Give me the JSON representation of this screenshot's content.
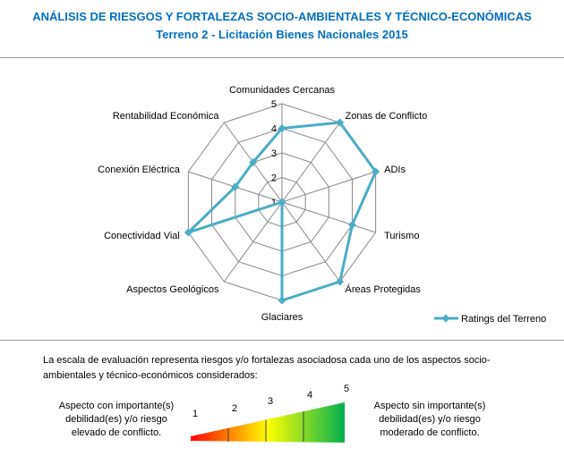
{
  "header": {
    "title": "ANÁLISIS DE RIESGOS Y FORTALEZAS SOCIO-AMBIENTALES Y TÉCNICO-ECONÓMICAS",
    "subtitle": "Terreno 2 - Licitación Bienes Nacionales 2015"
  },
  "chart_data": {
    "type": "radar",
    "categories": [
      "Comunidades Cercanas",
      "Zonas de Conflicto",
      "ADIs",
      "Turismo",
      "Áreas Protegidas",
      "Glaciares",
      "Aspectos Geológicos",
      "Conectividad Vial",
      "Conexión Eléctrica",
      "Rentabilidad Económica"
    ],
    "series": [
      {
        "name": "Ratings del Terreno",
        "values": [
          4,
          5,
          5,
          4,
          5,
          5,
          1,
          5,
          3,
          3
        ]
      }
    ],
    "range": [
      1,
      5
    ],
    "ticks": [
      "1",
      "2",
      "3",
      "4",
      "5"
    ],
    "legend_position": "bottom-right",
    "series_color": "#4bacc6",
    "grid_color": "#878787"
  },
  "scale": {
    "description": "La escala  de evaluación representa riesgos y/o fortalezas asociadosa cada uno de los aspectos socio-ambientales y técnico-económicos considerados:",
    "left_label": "Aspecto con importante(s) debilidad(es) y/o riesgo elevado de conflicto.",
    "right_label": "Aspecto sin importante(s) debilidad(es) y/o riesgo moderado de conflicto.",
    "numbers": [
      "1",
      "2",
      "3",
      "4",
      "5"
    ],
    "gradient_colors": [
      "#ff0000",
      "#ffff00",
      "#00b050"
    ]
  }
}
